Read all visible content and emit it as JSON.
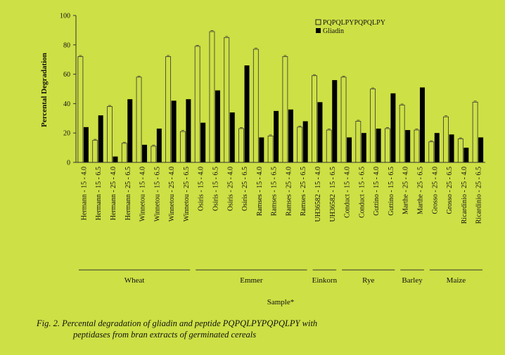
{
  "chart_data": {
    "type": "bar",
    "ylabel": "Percental Degradation",
    "xlabel": "Sample*",
    "ylim": [
      0,
      100
    ],
    "yticks": [
      "0",
      "20",
      "40",
      "60",
      "80",
      "100"
    ],
    "legend_position": "top-right",
    "categories": [
      "Hermann - 15 - 4.0",
      "Hermann - 15 - 6.5",
      "Hermann - 25 - 4.0",
      "Hermann - 25 - 6.5",
      "Winnetou - 15 - 4.0",
      "Winnetou - 15 - 6.5",
      "Winnetou - 25 - 4.0",
      "Winnetou - 25 - 6.5",
      "Osiris - 15 - 4.0",
      "Osiris - 15 - 6.5",
      "Osiris - 25 - 4.0",
      "Osiris - 25 - 6.5",
      "Ramses - 15 - 4.0",
      "Ramses - 15 - 6.5",
      "Ramses - 25 - 4.0",
      "Ramses - 25 - 6.5",
      "UH36582 - 15 - 4.0",
      "UH36582 - 15 - 6.5",
      "Conduct - 15 - 4.0",
      "Conduct - 15 - 6.5",
      "Guttino - 15 - 4.0",
      "Guttino - 15 - 6.5",
      "Marthe - 25 - 4.0",
      "Marthe - 25 - 6.5",
      "Grosso - 25 - 4.0",
      "Grosso - 25 - 6.5",
      "Ricardinio - 25 - 4.0",
      "Ricardinio - 25 - 6.5"
    ],
    "series": [
      {
        "name": "PQPQLPYPQPQLPY",
        "color": "#cde045",
        "values": [
          72,
          15,
          38,
          13,
          58,
          11,
          72,
          21,
          79,
          89,
          85,
          23,
          77,
          18,
          72,
          24,
          59,
          22,
          58,
          28,
          50,
          23,
          39,
          22,
          14,
          31,
          16,
          41
        ]
      },
      {
        "name": "Gliadin",
        "color": "#000000",
        "values": [
          24,
          32,
          4,
          43,
          12,
          23,
          42,
          43,
          27,
          49,
          34,
          66,
          17,
          35,
          36,
          28,
          41,
          56,
          17,
          20,
          23,
          47,
          22,
          51,
          20,
          19,
          10,
          17
        ]
      }
    ],
    "groups": [
      {
        "label": "Wheat",
        "count": 8
      },
      {
        "label": "Emmer",
        "count": 8
      },
      {
        "label": "Einkorn",
        "count": 2
      },
      {
        "label": "Rye",
        "count": 4
      },
      {
        "label": "Barley",
        "count": 2
      },
      {
        "label": "Maize",
        "count": 4
      }
    ]
  },
  "caption": {
    "prefix": "Fig. 2.",
    "line1": "Percental degradation of gliadin and peptide PQPQLPYPQPQLPY with",
    "line2": "peptidases from bran extracts of germinated cereals"
  }
}
